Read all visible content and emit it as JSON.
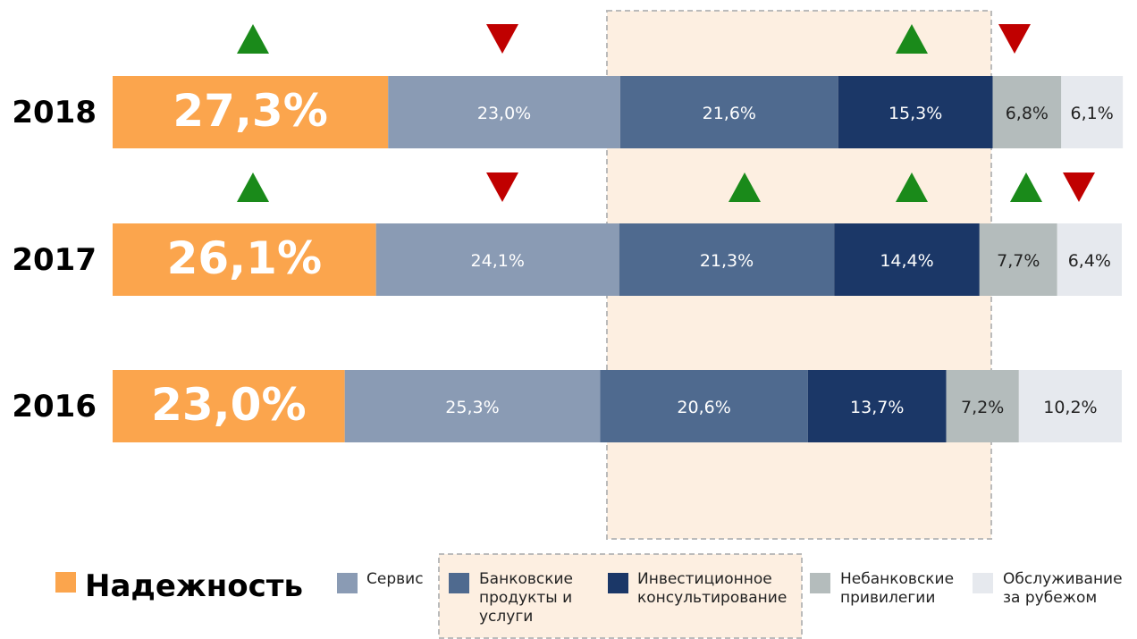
{
  "chart_data": {
    "type": "stacked-bar",
    "categories": [
      "2018",
      "2017",
      "2016"
    ],
    "series": [
      {
        "name": "Надежность",
        "color": "#fba54d",
        "values": [
          27.3,
          26.1,
          23.0
        ],
        "value_labels": [
          "27,3%",
          "26,1%",
          "23,0%"
        ]
      },
      {
        "name": "Сервис",
        "color": "#8a9bb4",
        "values": [
          23.0,
          24.1,
          25.3
        ],
        "value_labels": [
          "23,0%",
          "24,1%",
          "25,3%"
        ]
      },
      {
        "name": "Банковские продукты и услуги",
        "color": "#4f6a8f",
        "values": [
          21.6,
          21.3,
          20.6
        ],
        "value_labels": [
          "21,6%",
          "21,3%",
          "20,6%"
        ]
      },
      {
        "name": "Инвестиционное консультирование",
        "color": "#1b3767",
        "values": [
          15.3,
          14.4,
          13.7
        ],
        "value_labels": [
          "15,3%",
          "14,4%",
          "13,7%"
        ]
      },
      {
        "name": "Небанковские привилегии",
        "color": "#b4bcbc",
        "values": [
          6.8,
          7.7,
          7.2
        ],
        "value_labels": [
          "6,8%",
          "7,7%",
          "7,2%"
        ]
      },
      {
        "name": "Обслуживание за рубежом",
        "color": "#e6e9ee",
        "values": [
          6.1,
          6.4,
          10.2
        ],
        "value_labels": [
          "6,1%",
          "6,4%",
          "10,2%"
        ]
      }
    ],
    "xlim": [
      0,
      100
    ]
  }
}
